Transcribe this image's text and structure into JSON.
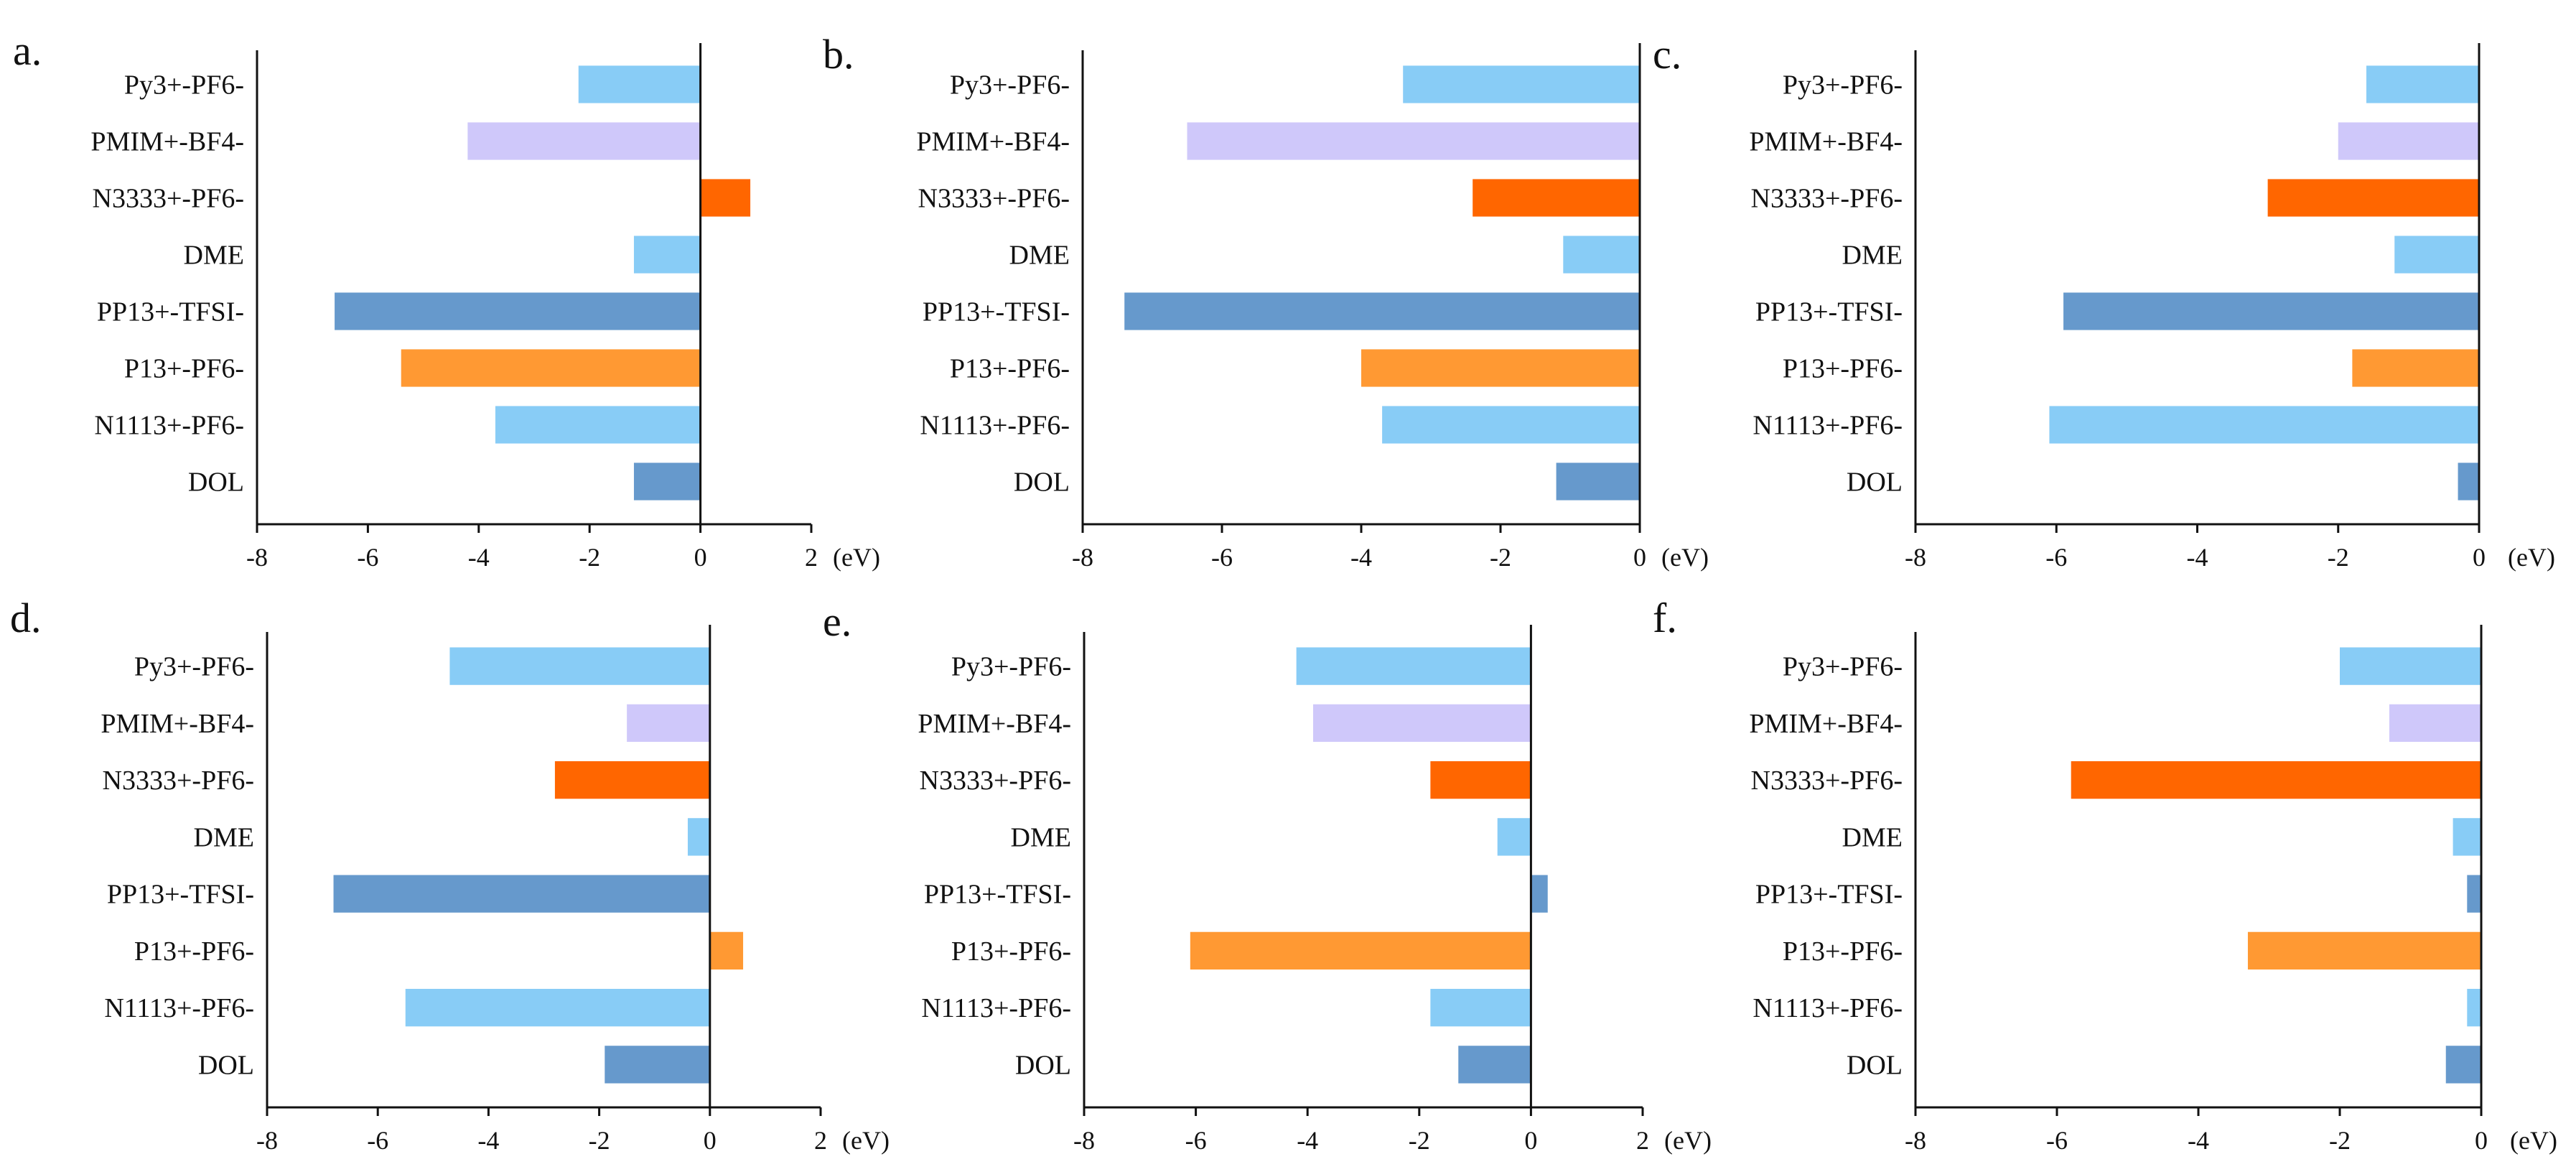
{
  "chart_data": [
    {
      "type": "bar",
      "orientation": "horizontal",
      "panel": "a.",
      "categories": [
        "Py3+-PF6-",
        "PMIM+-BF4-",
        "N3333+-PF6-",
        "DME",
        "PP13+-TFSI-",
        "P13+-PF6-",
        "N1113+-PF6-",
        "DOL"
      ],
      "values": [
        -2.2,
        -4.2,
        0.9,
        -1.2,
        -6.6,
        -5.4,
        -3.7,
        -1.2
      ],
      "colors": [
        "#88ccf6",
        "#cfc8fa",
        "#ff6600",
        "#88ccf6",
        "#6699cc",
        "#ff9933",
        "#88ccf6",
        "#6699cc"
      ],
      "xlim": [
        -8,
        2
      ],
      "xticks": [
        "-8",
        "-6",
        "-4",
        "-2",
        "0",
        "2"
      ],
      "unit": "(eV)"
    },
    {
      "type": "bar",
      "orientation": "horizontal",
      "panel": "b.",
      "categories": [
        "Py3+-PF6-",
        "PMIM+-BF4-",
        "N3333+-PF6-",
        "DME",
        "PP13+-TFSI-",
        "P13+-PF6-",
        "N1113+-PF6-",
        "DOL"
      ],
      "values": [
        -3.4,
        -6.5,
        -2.4,
        -1.1,
        -7.4,
        -4.0,
        -3.7,
        -1.2
      ],
      "colors": [
        "#88ccf6",
        "#cfc8fa",
        "#ff6600",
        "#88ccf6",
        "#6699cc",
        "#ff9933",
        "#88ccf6",
        "#6699cc"
      ],
      "xlim": [
        -8,
        0
      ],
      "xticks": [
        "-8",
        "-6",
        "-4",
        "-2",
        "0"
      ],
      "unit": "(eV)"
    },
    {
      "type": "bar",
      "orientation": "horizontal",
      "panel": "c.",
      "categories": [
        "Py3+-PF6-",
        "PMIM+-BF4-",
        "N3333+-PF6-",
        "DME",
        "PP13+-TFSI-",
        "P13+-PF6-",
        "N1113+-PF6-",
        "DOL"
      ],
      "values": [
        -1.6,
        -2.0,
        -3.0,
        -1.2,
        -5.9,
        -1.8,
        -6.1,
        -0.3
      ],
      "colors": [
        "#88ccf6",
        "#cfc8fa",
        "#ff6600",
        "#88ccf6",
        "#6699cc",
        "#ff9933",
        "#88ccf6",
        "#6699cc"
      ],
      "xlim": [
        -8,
        0
      ],
      "xticks": [
        "-8",
        "-6",
        "-4",
        "-2",
        "0"
      ],
      "unit": "(eV)"
    },
    {
      "type": "bar",
      "orientation": "horizontal",
      "panel": "d.",
      "categories": [
        "Py3+-PF6-",
        "PMIM+-BF4-",
        "N3333+-PF6-",
        "DME",
        "PP13+-TFSI-",
        "P13+-PF6-",
        "N1113+-PF6-",
        "DOL"
      ],
      "values": [
        -4.7,
        -1.5,
        -2.8,
        -0.4,
        -6.8,
        0.6,
        -5.5,
        -1.9
      ],
      "colors": [
        "#88ccf6",
        "#cfc8fa",
        "#ff6600",
        "#88ccf6",
        "#6699cc",
        "#ff9933",
        "#88ccf6",
        "#6699cc"
      ],
      "xlim": [
        -8,
        2
      ],
      "xticks": [
        "-8",
        "-6",
        "-4",
        "-2",
        "0",
        "2"
      ],
      "unit": "(eV)"
    },
    {
      "type": "bar",
      "orientation": "horizontal",
      "panel": "e.",
      "categories": [
        "Py3+-PF6-",
        "PMIM+-BF4-",
        "N3333+-PF6-",
        "DME",
        "PP13+-TFSI-",
        "P13+-PF6-",
        "N1113+-PF6-",
        "DOL"
      ],
      "values": [
        -4.2,
        -3.9,
        -1.8,
        -0.6,
        0.3,
        -6.1,
        -1.8,
        -1.3
      ],
      "colors": [
        "#88ccf6",
        "#cfc8fa",
        "#ff6600",
        "#88ccf6",
        "#6699cc",
        "#ff9933",
        "#88ccf6",
        "#6699cc"
      ],
      "xlim": [
        -8,
        2
      ],
      "xticks": [
        "-8",
        "-6",
        "-4",
        "-2",
        "0",
        "2"
      ],
      "unit": "(eV)"
    },
    {
      "type": "bar",
      "orientation": "horizontal",
      "panel": "f.",
      "categories": [
        "Py3+-PF6-",
        "PMIM+-BF4-",
        "N3333+-PF6-",
        "DME",
        "PP13+-TFSI-",
        "P13+-PF6-",
        "N1113+-PF6-",
        "DOL"
      ],
      "values": [
        -2.0,
        -1.3,
        -5.8,
        -0.4,
        -0.2,
        -3.3,
        -0.2,
        -0.5
      ],
      "colors": [
        "#88ccf6",
        "#cfc8fa",
        "#ff6600",
        "#88ccf6",
        "#6699cc",
        "#ff9933",
        "#88ccf6",
        "#6699cc"
      ],
      "xlim": [
        -8,
        0
      ],
      "xticks": [
        "-8",
        "-6",
        "-4",
        "-2",
        "0"
      ],
      "unit": "(eV)"
    }
  ]
}
